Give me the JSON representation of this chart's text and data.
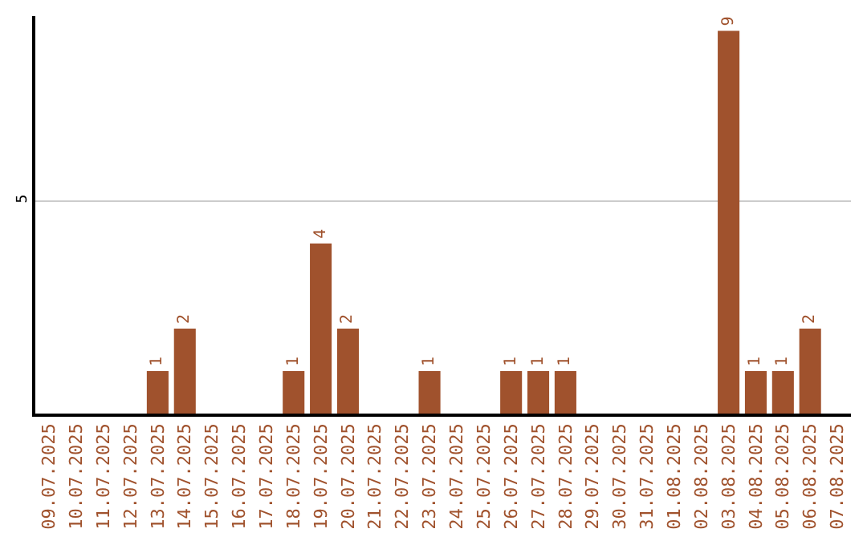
{
  "chart_data": {
    "type": "bar",
    "categories": [
      "09.07.2025",
      "10.07.2025",
      "11.07.2025",
      "12.07.2025",
      "13.07.2025",
      "14.07.2025",
      "15.07.2025",
      "16.07.2025",
      "17.07.2025",
      "18.07.2025",
      "19.07.2025",
      "20.07.2025",
      "21.07.2025",
      "22.07.2025",
      "23.07.2025",
      "24.07.2025",
      "25.07.2025",
      "26.07.2025",
      "27.07.2025",
      "28.07.2025",
      "29.07.2025",
      "30.07.2025",
      "31.07.2025",
      "01.08.2025",
      "02.08.2025",
      "03.08.2025",
      "04.08.2025",
      "05.08.2025",
      "06.08.2025",
      "07.08.2025"
    ],
    "values": [
      0,
      0,
      0,
      0,
      1,
      2,
      0,
      0,
      0,
      1,
      4,
      2,
      0,
      0,
      1,
      0,
      0,
      1,
      1,
      1,
      0,
      0,
      0,
      0,
      0,
      9,
      1,
      1,
      2,
      0
    ],
    "value_labels": [
      null,
      null,
      null,
      null,
      "1",
      "2",
      null,
      null,
      null,
      "1",
      "4",
      "2",
      null,
      null,
      "1",
      null,
      null,
      "1",
      "1",
      "1",
      null,
      null,
      null,
      null,
      null,
      "9",
      "1",
      "1",
      "2",
      null
    ],
    "color": "#a0522d",
    "ylim": [
      0,
      9.35
    ],
    "yticks": [
      5
    ],
    "grid": "y",
    "legend": false
  }
}
